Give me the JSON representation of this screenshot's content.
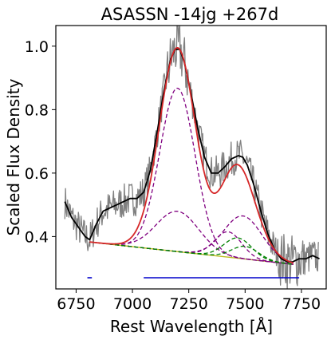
{
  "chart_data": {
    "type": "line",
    "title": "ASASSN -14jg  +267d",
    "xlabel": "Rest Wavelength [Å]",
    "ylabel": "Scaled Flux Density",
    "xlim": [
      6660,
      7860
    ],
    "ylim": [
      0.235,
      1.065
    ],
    "xticks": [
      6750,
      7000,
      7250,
      7500,
      7750
    ],
    "yticks": [
      0.4,
      0.6,
      0.8,
      1.0
    ],
    "xtick_labels": [
      "6750",
      "7000",
      "7250",
      "7500",
      "7750"
    ],
    "ytick_labels": [
      "0.4",
      "0.6",
      "0.8",
      "1.0"
    ],
    "grid": false,
    "legend": "none",
    "colors": {
      "observed": "#808080",
      "smoothed": "#000000",
      "total_fit": "#d62728",
      "broad_component": "#800080",
      "narrow_component": "#008000",
      "continuum": "#bcbd22",
      "fit_window": "#0000cc"
    },
    "series": [
      {
        "role": "smoothed",
        "x": [
          6700,
          6730,
          6760,
          6790,
          6810,
          6840,
          6870,
          6900,
          6930,
          6960,
          6990,
          7020,
          7050,
          7080,
          7110,
          7140,
          7170,
          7190,
          7210,
          7230,
          7260,
          7290,
          7320,
          7350,
          7380,
          7410,
          7440,
          7470,
          7490,
          7510,
          7540,
          7570,
          7600,
          7630,
          7660,
          7690,
          7710,
          7740,
          7770,
          7800,
          7830
        ],
        "y": [
          0.51,
          0.46,
          0.43,
          0.4,
          0.39,
          0.44,
          0.48,
          0.49,
          0.5,
          0.51,
          0.52,
          0.52,
          0.54,
          0.61,
          0.73,
          0.86,
          0.96,
          0.99,
          0.99,
          0.95,
          0.85,
          0.74,
          0.65,
          0.6,
          0.6,
          0.62,
          0.645,
          0.655,
          0.65,
          0.625,
          0.56,
          0.48,
          0.41,
          0.36,
          0.33,
          0.32,
          0.32,
          0.33,
          0.33,
          0.34,
          0.33
        ]
      }
    ],
    "fit_window_bars": [
      [
        6800,
        6820
      ],
      [
        7050,
        7740
      ]
    ]
  }
}
